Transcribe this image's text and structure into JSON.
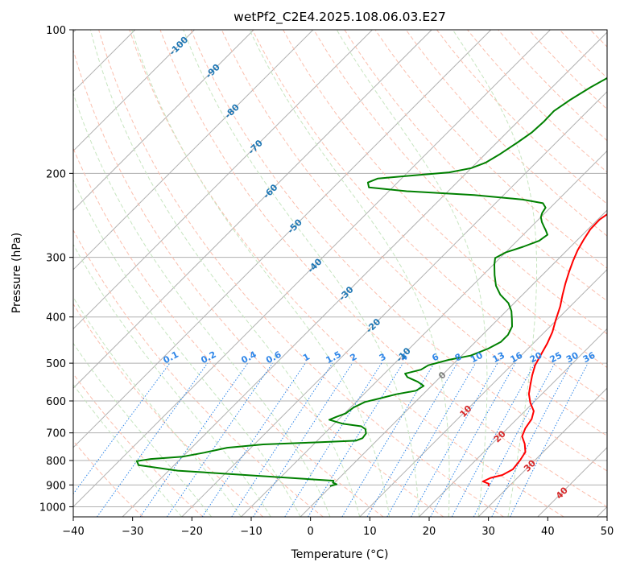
{
  "chart_data": {
    "type": "line",
    "title": "wetPf2_C2E4.2025.108.06.03.E27",
    "xlabel": "Temperature (°C)",
    "ylabel": "Pressure (hPa)",
    "xlim": [
      -40,
      50
    ],
    "ylim": [
      1050,
      100
    ],
    "y_scale": "log",
    "x_ticks": [
      "−40",
      "−30",
      "−20",
      "−10",
      "0",
      "10",
      "20",
      "30",
      "40",
      "50"
    ],
    "x_tick_values": [
      -40,
      -30,
      -20,
      -10,
      0,
      10,
      20,
      30,
      40,
      50
    ],
    "y_ticks": [
      "100",
      "200",
      "300",
      "400",
      "500",
      "600",
      "700",
      "800",
      "900",
      "1000"
    ],
    "y_tick_values": [
      100,
      200,
      300,
      400,
      500,
      600,
      700,
      800,
      900,
      1000
    ],
    "isotherms": [
      -130,
      -120,
      -110,
      -100,
      -90,
      -80,
      -70,
      -60,
      -50,
      -40,
      -30,
      -20,
      -10,
      0,
      10,
      20,
      30,
      40,
      50
    ],
    "dry_adiabats_theta_c": [
      -30,
      -20,
      -10,
      0,
      10,
      20,
      30,
      40,
      50,
      60,
      70,
      80,
      90,
      100,
      110,
      120,
      130,
      140,
      150,
      160,
      170,
      180,
      190
    ],
    "moist_adiabats_c": [
      -20,
      -15,
      -10,
      -5,
      0,
      5,
      10,
      15,
      20,
      25,
      30,
      35
    ],
    "mixing_ratios": [
      "0.1",
      "0.2",
      "0.4",
      "0.6",
      "1",
      "1.5",
      "2",
      "3",
      "4",
      "6",
      "8",
      "10",
      "13",
      "16",
      "20",
      "25",
      "30",
      "36"
    ],
    "isotherm_labels": [
      {
        "text": "-100",
        "color": "#1f77b4"
      },
      {
        "text": "-90",
        "color": "#1f77b4"
      },
      {
        "text": "-80",
        "color": "#1f77b4"
      },
      {
        "text": "-70",
        "color": "#1f77b4"
      },
      {
        "text": "-60",
        "color": "#1f77b4"
      },
      {
        "text": "-50",
        "color": "#1f77b4"
      },
      {
        "text": "-40",
        "color": "#1f77b4"
      },
      {
        "text": "-30",
        "color": "#1f77b4"
      },
      {
        "text": "-20",
        "color": "#1f77b4"
      },
      {
        "text": "-10",
        "color": "#1f77b4"
      },
      {
        "text": "0",
        "color": "#7f7f7f"
      },
      {
        "text": "10",
        "color": "#d62728"
      },
      {
        "text": "20",
        "color": "#d62728"
      },
      {
        "text": "30",
        "color": "#d62728"
      },
      {
        "text": "40",
        "color": "#d62728"
      }
    ],
    "series": [
      {
        "color": "#ff0000",
        "points": [
          [
            26.5,
            905
          ],
          [
            26.2,
            895
          ],
          [
            24.8,
            885
          ],
          [
            25.5,
            870
          ],
          [
            27.0,
            858
          ],
          [
            27.8,
            835
          ],
          [
            27.5,
            800
          ],
          [
            27.0,
            768
          ],
          [
            25.5,
            738
          ],
          [
            23.8,
            712
          ],
          [
            23.0,
            685
          ],
          [
            22.5,
            655
          ],
          [
            21.5,
            630
          ],
          [
            19.5,
            605
          ],
          [
            17.8,
            580
          ],
          [
            16.5,
            555
          ],
          [
            15.2,
            530
          ],
          [
            14.0,
            505
          ],
          [
            13.2,
            480
          ],
          [
            12.4,
            455
          ],
          [
            11.3,
            430
          ],
          [
            9.8,
            405
          ],
          [
            8.3,
            380
          ],
          [
            6.8,
            360
          ],
          [
            5.3,
            340
          ],
          [
            4.0,
            322
          ],
          [
            2.8,
            305
          ],
          [
            1.8,
            290
          ],
          [
            1.0,
            275
          ],
          [
            0.4,
            262
          ],
          [
            0.3,
            250
          ],
          [
            0.9,
            240
          ],
          [
            2.2,
            232
          ],
          [
            3.8,
            223
          ],
          [
            5.2,
            214
          ],
          [
            6.0,
            205
          ],
          [
            6.0,
            196
          ],
          [
            5.1,
            188
          ],
          [
            4.2,
            180
          ],
          [
            3.2,
            173
          ],
          [
            2.6,
            166
          ],
          [
            2.7,
            158
          ],
          [
            3.4,
            151
          ],
          [
            4.0,
            145
          ],
          [
            4.0,
            139
          ],
          [
            3.4,
            133
          ],
          [
            3.3,
            127
          ],
          [
            3.8,
            121
          ],
          [
            4.8,
            116
          ],
          [
            5.9,
            111
          ],
          [
            6.5,
            106
          ],
          [
            6.9,
            100
          ]
        ]
      },
      {
        "color": "#008000",
        "points": [
          [
            -0.2,
            905
          ],
          [
            0.6,
            897
          ],
          [
            -0.3,
            890
          ],
          [
            -0.5,
            882
          ],
          [
            -15.0,
            860
          ],
          [
            -28.5,
            840
          ],
          [
            -36.0,
            818
          ],
          [
            -37.0,
            802
          ],
          [
            -35.0,
            794
          ],
          [
            -30.0,
            785
          ],
          [
            -27.0,
            770
          ],
          [
            -24.0,
            752
          ],
          [
            -18.5,
            740
          ],
          [
            -10.0,
            733
          ],
          [
            -3.5,
            727
          ],
          [
            -2.8,
            718
          ],
          [
            -3.0,
            702
          ],
          [
            -3.8,
            688
          ],
          [
            -5.0,
            678
          ],
          [
            -8.5,
            670
          ],
          [
            -11.5,
            657
          ],
          [
            -10.8,
            648
          ],
          [
            -9.8,
            637
          ],
          [
            -9.5,
            620
          ],
          [
            -8.5,
            603
          ],
          [
            -6.5,
            592
          ],
          [
            -4.5,
            581
          ],
          [
            -1.8,
            571
          ],
          [
            -1.3,
            558
          ],
          [
            -3.0,
            547
          ],
          [
            -5.5,
            535
          ],
          [
            -6.5,
            526
          ],
          [
            -4.5,
            516
          ],
          [
            -4.0,
            505
          ],
          [
            -1.5,
            492
          ],
          [
            1.5,
            482
          ],
          [
            3.3,
            466
          ],
          [
            4.3,
            451
          ],
          [
            4.3,
            436
          ],
          [
            3.6,
            419
          ],
          [
            2.3,
            404
          ],
          [
            0.9,
            389
          ],
          [
            -1.0,
            374
          ],
          [
            -3.8,
            359
          ],
          [
            -6.0,
            344
          ],
          [
            -8.0,
            327
          ],
          [
            -9.8,
            311
          ],
          [
            -10.8,
            301
          ],
          [
            -10.0,
            293
          ],
          [
            -8.0,
            285
          ],
          [
            -6.3,
            277
          ],
          [
            -5.9,
            269
          ],
          [
            -7.0,
            263
          ],
          [
            -8.0,
            258
          ],
          [
            -9.0,
            253
          ],
          [
            -10.0,
            247
          ],
          [
            -10.5,
            242
          ],
          [
            -10.8,
            236
          ],
          [
            -12.0,
            231
          ],
          [
            -16.0,
            227
          ],
          [
            -25.0,
            222
          ],
          [
            -37.0,
            218
          ],
          [
            -44.0,
            214
          ],
          [
            -45.0,
            209
          ],
          [
            -44.0,
            205
          ],
          [
            -38.5,
            202
          ],
          [
            -33.0,
            199
          ],
          [
            -30.0,
            195
          ],
          [
            -28.5,
            190
          ],
          [
            -27.5,
            182
          ],
          [
            -26.5,
            172
          ],
          [
            -25.8,
            164
          ],
          [
            -25.6,
            156
          ],
          [
            -25.7,
            148
          ],
          [
            -24.8,
            140
          ],
          [
            -23.5,
            132
          ],
          [
            -22.0,
            125
          ],
          [
            -20.3,
            119
          ],
          [
            -18.7,
            114
          ],
          [
            -17.0,
            110
          ],
          [
            -15.7,
            106
          ],
          [
            -14.7,
            101
          ],
          [
            -14.5,
            100
          ]
        ]
      }
    ]
  }
}
